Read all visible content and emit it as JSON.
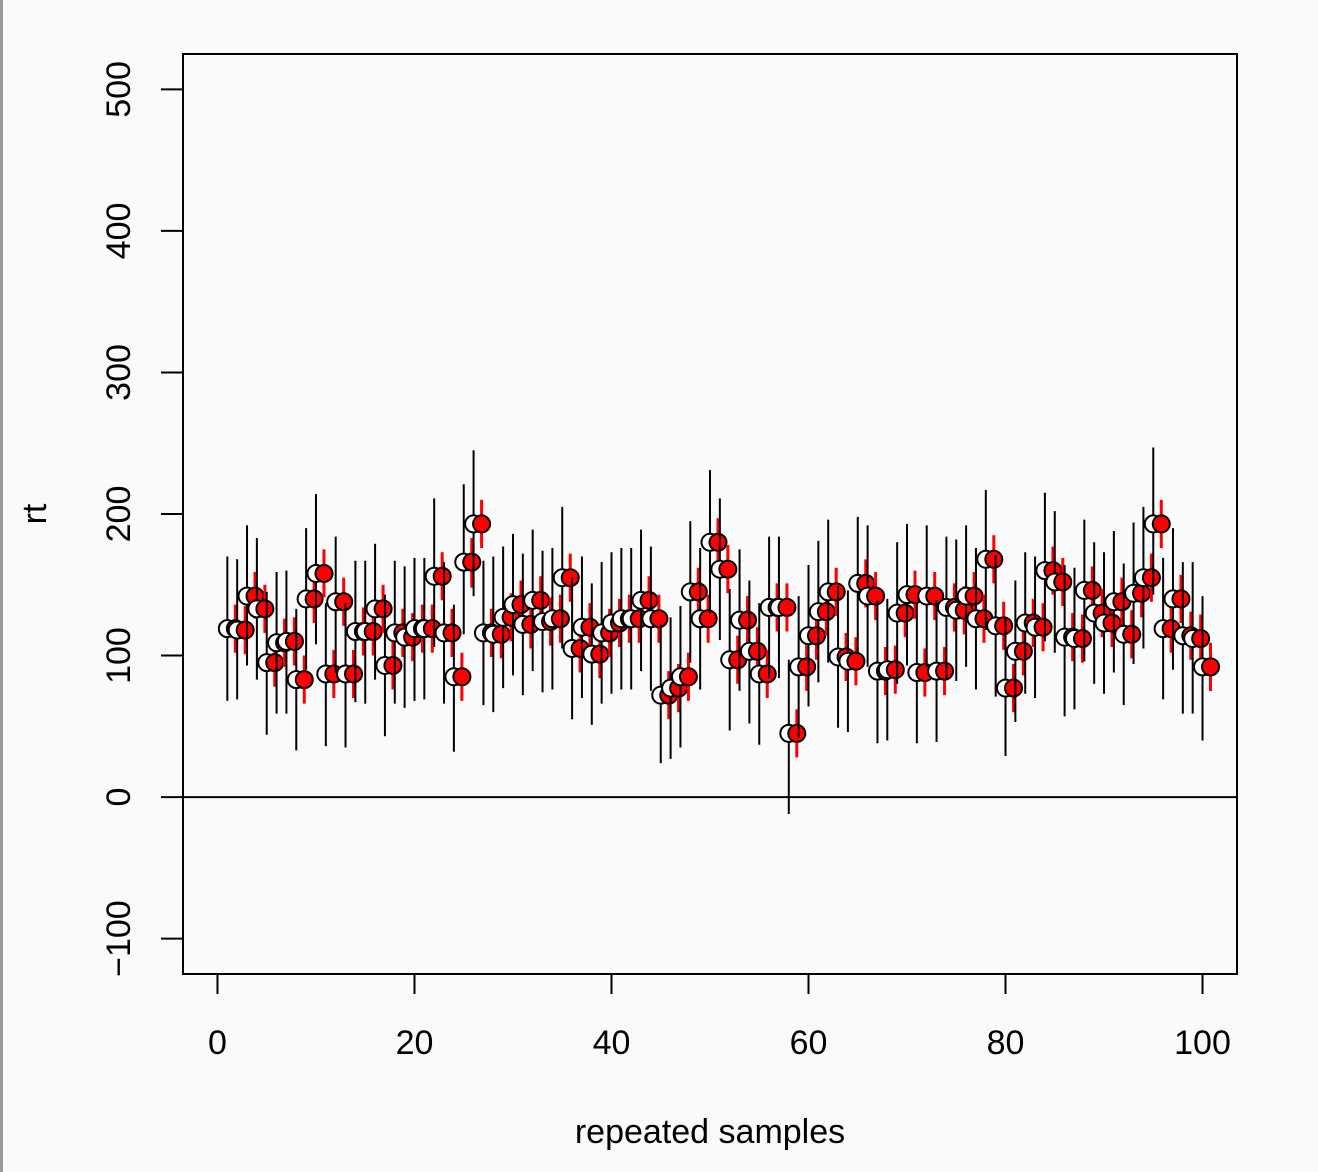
{
  "chart_data": {
    "type": "scatter",
    "title": "",
    "xlabel": "repeated samples",
    "ylabel": "rt",
    "xlim": [
      -3.5,
      103.5
    ],
    "ylim": [
      -125,
      525
    ],
    "xticks": [
      0,
      20,
      40,
      60,
      80,
      100
    ],
    "yticks": [
      -100,
      0,
      100,
      200,
      300,
      400,
      500
    ],
    "reference_line_y": 0,
    "grid": false,
    "legend": "none",
    "colors": {
      "black_interval": "#000000",
      "red_interval": "#ff0000",
      "point_fill": "#ff0000",
      "point_outline": "#000000",
      "background": "#fafafa"
    },
    "series": [
      {
        "x": [
          1,
          2,
          3,
          4,
          5,
          6,
          7,
          8,
          9,
          10,
          11,
          12,
          13,
          14,
          15,
          16,
          17,
          18,
          19,
          20,
          21,
          22,
          23,
          24,
          25,
          26,
          27,
          28,
          29,
          30,
          31,
          32,
          33,
          34,
          35,
          36,
          37,
          38,
          39,
          40,
          41,
          42,
          43,
          44,
          45,
          46,
          47,
          48,
          49,
          50,
          51,
          52,
          53,
          54,
          55,
          56,
          57,
          58,
          59,
          60,
          61,
          62,
          63,
          64,
          65,
          66,
          67,
          68,
          69,
          70,
          71,
          72,
          73,
          74,
          75,
          76,
          77,
          78,
          79,
          80,
          81,
          82,
          83,
          84,
          85,
          86,
          87,
          88,
          89,
          90,
          91,
          92,
          93,
          94,
          95,
          96,
          97,
          98,
          99,
          100
        ],
        "y": [
          119,
          118,
          142,
          133,
          95,
          109,
          110,
          83,
          140,
          158,
          87,
          138,
          87,
          117,
          117,
          133,
          93,
          116,
          113,
          119,
          119,
          156,
          116,
          85,
          166,
          193,
          116,
          115,
          127,
          136,
          122,
          139,
          124,
          126,
          155,
          105,
          120,
          101,
          116,
          123,
          126,
          126,
          139,
          126,
          72,
          77,
          85,
          145,
          126,
          180,
          161,
          97,
          125,
          103,
          87,
          134,
          134,
          45,
          92,
          114,
          131,
          145,
          99,
          96,
          151,
          142,
          89,
          90,
          130,
          143,
          88,
          142,
          89,
          134,
          132,
          142,
          126,
          168,
          121,
          77,
          103,
          123,
          120,
          160,
          152,
          113,
          112,
          146,
          130,
          123,
          138,
          115,
          144,
          155,
          193,
          119,
          140,
          114,
          112,
          92
        ],
        "ci_lower": [
          68,
          69,
          93,
          83,
          44,
          59,
          59,
          33,
          90,
          108,
          36,
          88,
          35,
          67,
          66,
          83,
          43,
          66,
          63,
          68,
          69,
          106,
          66,
          32,
          115,
          142,
          65,
          60,
          77,
          86,
          72,
          89,
          74,
          76,
          105,
          55,
          70,
          51,
          66,
          73,
          76,
          76,
          89,
          75,
          24,
          27,
          35,
          95,
          76,
          130,
          111,
          47,
          75,
          52,
          37,
          84,
          84,
          -12,
          42,
          64,
          81,
          95,
          49,
          46,
          101,
          92,
          38,
          40,
          80,
          93,
          38,
          92,
          39,
          84,
          82,
          92,
          76,
          118,
          71,
          29,
          53,
          73,
          70,
          110,
          102,
          57,
          62,
          96,
          80,
          73,
          88,
          65,
          94,
          105,
          143,
          69,
          90,
          59,
          59,
          40
        ],
        "ci_upper": [
          170,
          168,
          192,
          183,
          145,
          159,
          160,
          133,
          190,
          214,
          137,
          184,
          137,
          167,
          167,
          179,
          143,
          167,
          163,
          169,
          169,
          211,
          166,
          136,
          221,
          245,
          167,
          170,
          177,
          186,
          172,
          189,
          174,
          176,
          205,
          155,
          170,
          151,
          166,
          173,
          176,
          176,
          189,
          177,
          122,
          127,
          135,
          195,
          176,
          231,
          211,
          147,
          175,
          153,
          137,
          184,
          184,
          97,
          142,
          164,
          181,
          196,
          149,
          146,
          198,
          192,
          139,
          140,
          180,
          193,
          138,
          192,
          139,
          184,
          182,
          192,
          176,
          217,
          171,
          127,
          153,
          173,
          170,
          215,
          202,
          164,
          162,
          196,
          180,
          173,
          188,
          165,
          194,
          205,
          247,
          169,
          190,
          166,
          166,
          142
        ],
        "se_lower": [
          102,
          101,
          126,
          116,
          78,
          92,
          93,
          66,
          123,
          141,
          70,
          121,
          70,
          100,
          100,
          116,
          76,
          99,
          96,
          102,
          102,
          139,
          99,
          68,
          148,
          176,
          99,
          98,
          110,
          119,
          105,
          122,
          107,
          109,
          138,
          88,
          103,
          84,
          99,
          106,
          109,
          109,
          122,
          109,
          55,
          60,
          68,
          128,
          109,
          163,
          144,
          80,
          108,
          86,
          70,
          117,
          117,
          28,
          75,
          97,
          114,
          128,
          82,
          79,
          134,
          125,
          72,
          73,
          113,
          126,
          71,
          125,
          72,
          117,
          115,
          125,
          109,
          151,
          104,
          60,
          86,
          106,
          103,
          143,
          135,
          96,
          95,
          129,
          113,
          106,
          121,
          98,
          127,
          138,
          176,
          102,
          123,
          97,
          95,
          75
        ],
        "se_upper": [
          136,
          135,
          159,
          150,
          112,
          126,
          127,
          100,
          157,
          175,
          104,
          155,
          104,
          134,
          134,
          150,
          110,
          133,
          130,
          136,
          136,
          173,
          133,
          102,
          183,
          210,
          133,
          132,
          144,
          153,
          139,
          156,
          141,
          143,
          172,
          122,
          137,
          118,
          133,
          140,
          143,
          143,
          156,
          143,
          89,
          94,
          102,
          162,
          143,
          197,
          178,
          114,
          142,
          120,
          104,
          151,
          151,
          62,
          109,
          131,
          148,
          162,
          116,
          113,
          168,
          159,
          106,
          107,
          147,
          160,
          105,
          159,
          106,
          151,
          149,
          159,
          143,
          185,
          138,
          94,
          120,
          140,
          137,
          177,
          169,
          130,
          129,
          163,
          147,
          140,
          155,
          132,
          161,
          172,
          210,
          136,
          157,
          131,
          129,
          109
        ]
      }
    ]
  }
}
